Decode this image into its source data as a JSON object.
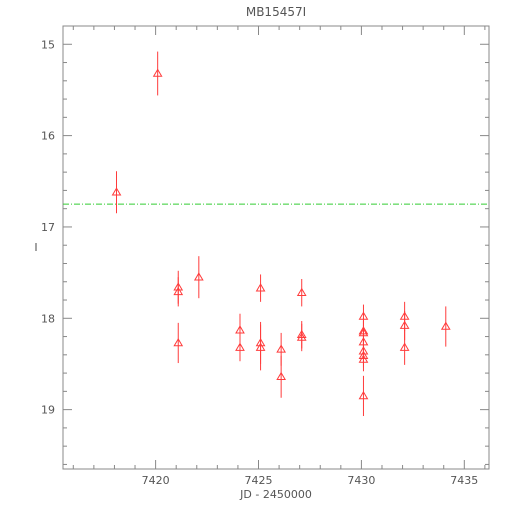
{
  "chart_data": {
    "type": "scatter",
    "title": "MB15457I",
    "xlabel": "JD - 2450000",
    "ylabel": "I",
    "xlim": [
      7415.5,
      7436.2
    ],
    "ylim": [
      19.65,
      14.8
    ],
    "y_inverted": true,
    "xticks": [
      7420,
      7425,
      7430,
      7435
    ],
    "yticks": [
      15,
      16,
      17,
      18,
      19
    ],
    "grid": false,
    "marker": "triangle-open",
    "colors": {
      "points": "#ff3b3b",
      "reference_line": "#33cc33",
      "axes": "#888888"
    },
    "reference_line": {
      "y": 16.75,
      "style": "dash-dot"
    },
    "series": [
      {
        "points": [
          {
            "x": 7418.1,
            "y": 16.62,
            "err": 0.23
          },
          {
            "x": 7420.1,
            "y": 15.32,
            "err": 0.24
          },
          {
            "x": 7421.1,
            "y": 17.66,
            "err": 0.18
          },
          {
            "x": 7421.1,
            "y": 17.71,
            "err": 0.16
          },
          {
            "x": 7421.1,
            "y": 18.27,
            "err": 0.22
          },
          {
            "x": 7422.1,
            "y": 17.55,
            "err": 0.23
          },
          {
            "x": 7424.1,
            "y": 18.13,
            "err": 0.18
          },
          {
            "x": 7424.1,
            "y": 18.32,
            "err": 0.15
          },
          {
            "x": 7425.1,
            "y": 17.67,
            "err": 0.15
          },
          {
            "x": 7425.1,
            "y": 18.27,
            "err": 0.23
          },
          {
            "x": 7425.1,
            "y": 18.32,
            "err": 0.25
          },
          {
            "x": 7426.1,
            "y": 18.34,
            "err": 0.18
          },
          {
            "x": 7426.1,
            "y": 18.64,
            "err": 0.23
          },
          {
            "x": 7427.1,
            "y": 17.72,
            "err": 0.15
          },
          {
            "x": 7427.1,
            "y": 18.18,
            "err": 0.15
          },
          {
            "x": 7427.1,
            "y": 18.21,
            "err": 0.15
          },
          {
            "x": 7430.1,
            "y": 17.98,
            "err": 0.13
          },
          {
            "x": 7430.1,
            "y": 18.14,
            "err": 0.15
          },
          {
            "x": 7430.1,
            "y": 18.16,
            "err": 0.13
          },
          {
            "x": 7430.1,
            "y": 18.26,
            "err": 0.13
          },
          {
            "x": 7430.1,
            "y": 18.36,
            "err": 0.12
          },
          {
            "x": 7430.1,
            "y": 18.41,
            "err": 0.13
          },
          {
            "x": 7430.1,
            "y": 18.45,
            "err": 0.13
          },
          {
            "x": 7430.1,
            "y": 18.85,
            "err": 0.22
          },
          {
            "x": 7432.1,
            "y": 17.98,
            "err": 0.16
          },
          {
            "x": 7432.1,
            "y": 18.08,
            "err": 0.16
          },
          {
            "x": 7432.1,
            "y": 18.32,
            "err": 0.19
          },
          {
            "x": 7434.1,
            "y": 18.09,
            "err": 0.22
          }
        ]
      }
    ]
  }
}
